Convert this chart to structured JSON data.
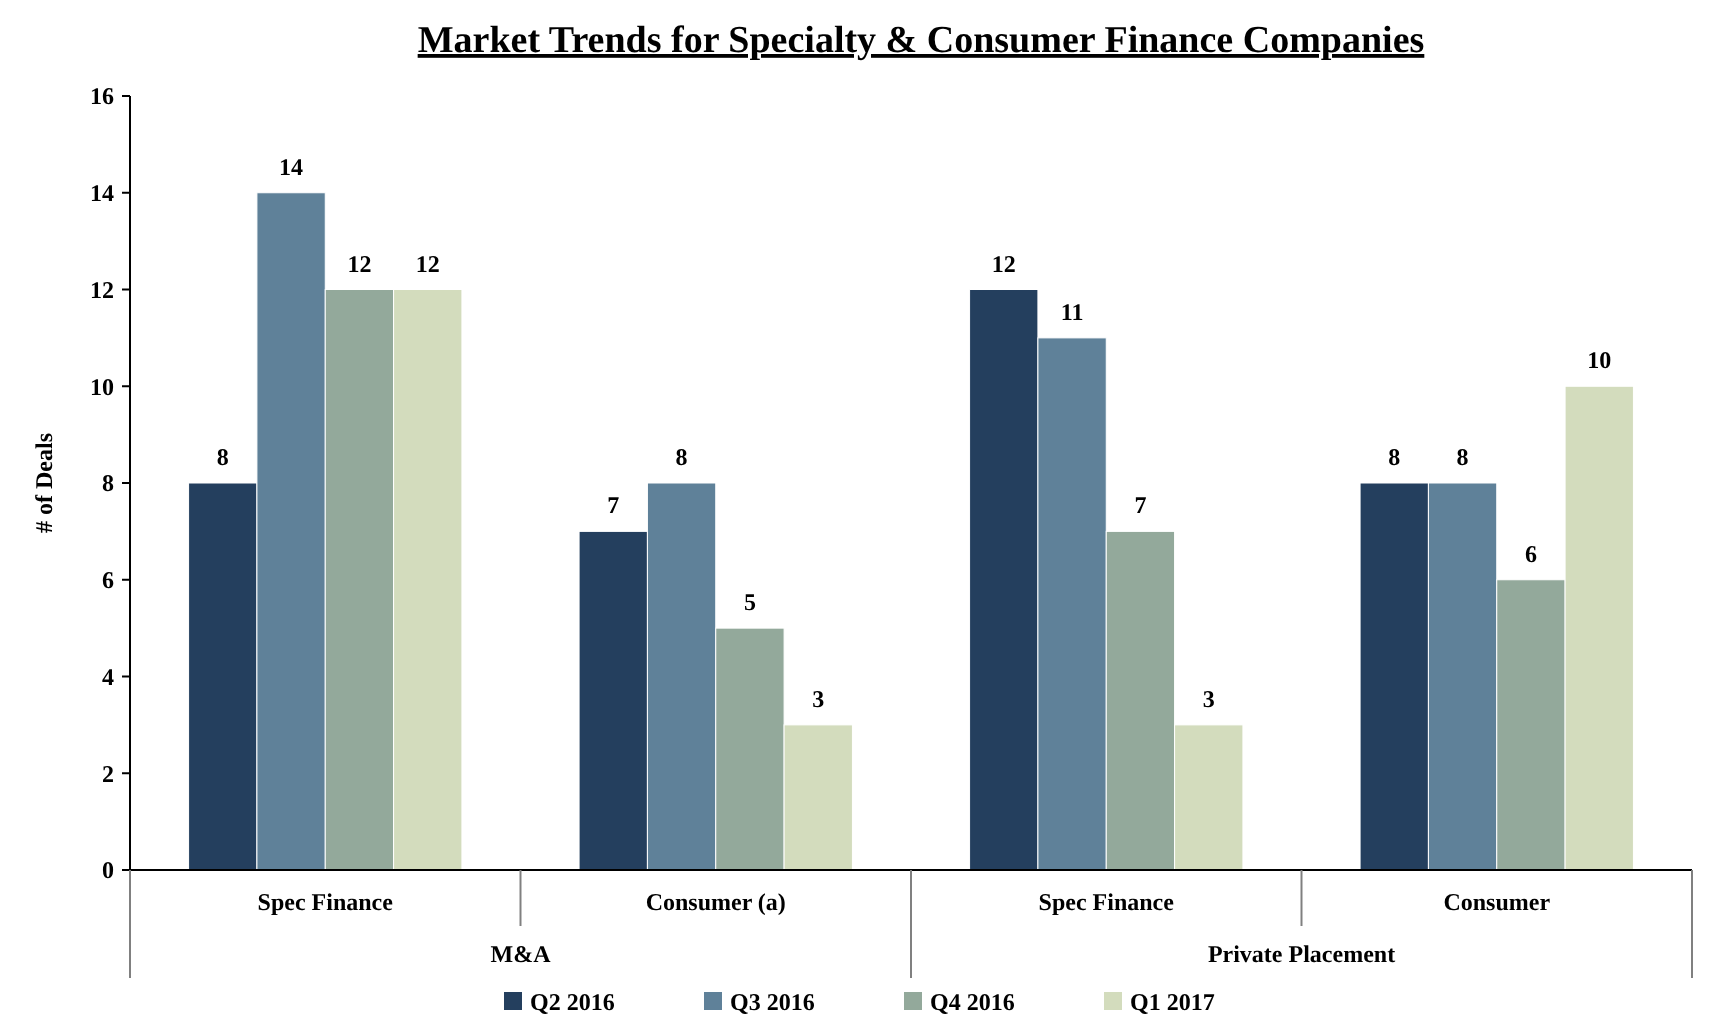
{
  "chart_data": {
    "type": "bar",
    "title": "Market Trends for Specialty & Consumer Finance Companies",
    "ylabel": "# of Deals",
    "categories": [
      "Spec Finance",
      "Consumer (a)",
      "Spec Finance",
      "Consumer"
    ],
    "annotations": [
      "M&A",
      "Private Placement"
    ],
    "series": [
      {
        "name": "Q2 2016",
        "color": "#243f5e",
        "values": [
          8,
          7,
          12,
          8
        ]
      },
      {
        "name": "Q3 2016",
        "color": "#5f8199",
        "values": [
          14,
          8,
          11,
          8
        ]
      },
      {
        "name": "Q4 2016",
        "color": "#93a99b",
        "values": [
          12,
          5,
          7,
          6
        ]
      },
      {
        "name": "Q1 2017",
        "color": "#d3dcbd",
        "values": [
          12,
          3,
          3,
          10
        ]
      }
    ],
    "ylim": [
      0,
      16
    ],
    "yticks": [
      0,
      2,
      4,
      6,
      8,
      10,
      12,
      14,
      16
    ],
    "grid": false,
    "legend": "bottom",
    "data_labels": true
  }
}
